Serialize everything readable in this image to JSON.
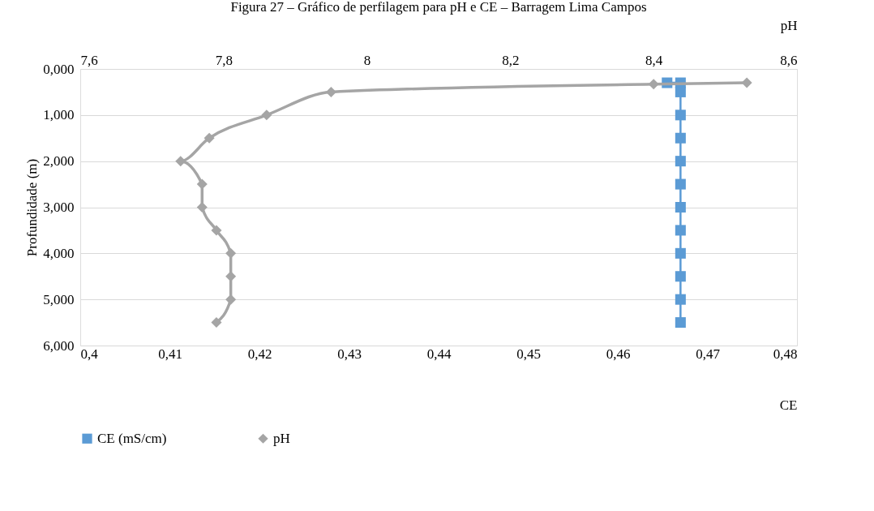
{
  "chart_data": {
    "type": "line",
    "title": "Figura 27 – Gráfico de perfilagem para pH e CE – Barragem Lima Campos",
    "xlabel": "CE",
    "x2label": "pH",
    "ylabel": "Profundidade (m)",
    "xlim": [
      0.4,
      0.48
    ],
    "xticks": [
      {
        "value": 0.4,
        "label": "0,4"
      },
      {
        "value": 0.41,
        "label": "0,41"
      },
      {
        "value": 0.42,
        "label": "0,42"
      },
      {
        "value": 0.43,
        "label": "0,43"
      },
      {
        "value": 0.44,
        "label": "0,44"
      },
      {
        "value": 0.45,
        "label": "0,45"
      },
      {
        "value": 0.46,
        "label": "0,46"
      },
      {
        "value": 0.47,
        "label": "0,47"
      },
      {
        "value": 0.48,
        "label": "0,48"
      }
    ],
    "x2lim": [
      7.6,
      8.6
    ],
    "x2ticks": [
      {
        "value": 7.6,
        "label": "7,6"
      },
      {
        "value": 7.8,
        "label": "7,8"
      },
      8,
      {
        "value": 8.2,
        "label": "8,2"
      },
      {
        "value": 8.4,
        "label": "8,4"
      },
      {
        "value": 8.6,
        "label": "8,6"
      }
    ],
    "ylim": [
      6,
      0
    ],
    "yticks": [
      {
        "value": 0,
        "label": "0,000"
      },
      {
        "value": 1,
        "label": "1,000"
      },
      {
        "value": 2,
        "label": "2,000"
      },
      {
        "value": 3,
        "label": "3,000"
      },
      {
        "value": 4,
        "label": "4,000"
      },
      {
        "value": 5,
        "label": "5,000"
      },
      {
        "value": 6,
        "label": "6,000"
      }
    ],
    "grid": "y",
    "legend": "bottom left",
    "line_style": "solid",
    "series": [
      {
        "name": "CE (mS/cm)",
        "color": "#5b9bd5",
        "marker": "square",
        "x": [
          0.4655,
          0.467,
          0.467,
          0.467,
          0.467,
          0.467,
          0.467,
          0.467,
          0.467,
          0.467,
          0.467,
          0.467,
          0.467
        ],
        "values": [
          0.3,
          0.3,
          0.5,
          1.0,
          1.5,
          2.0,
          2.5,
          3.0,
          3.5,
          4.0,
          4.5,
          5.0,
          5.5
        ]
      },
      {
        "name": "pH",
        "color": "#a5a5a5",
        "marker": "diamond",
        "axis": "x2",
        "x": [
          8.53,
          8.4,
          7.95,
          7.86,
          7.78,
          7.74,
          7.77,
          7.77,
          7.79,
          7.81,
          7.81,
          7.81,
          7.79
        ],
        "values": [
          0.3,
          0.33,
          0.5,
          1.0,
          1.5,
          2.0,
          2.5,
          3.0,
          3.5,
          4.0,
          4.5,
          5.0,
          5.5
        ]
      }
    ]
  }
}
